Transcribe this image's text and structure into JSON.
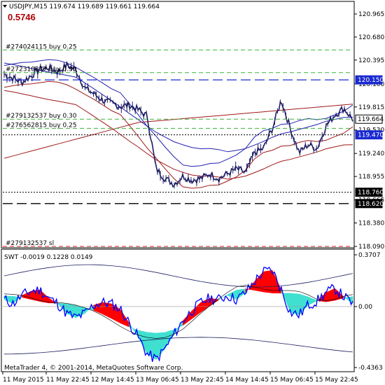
{
  "header": {
    "symbol_line": "USDJPY,M15  119.674 119.689 119.661 119.664",
    "profit": "0.5746"
  },
  "orders": [
    {
      "label": "#274024115 buy 0.25",
      "price": 120.52,
      "color": "#3cb43c"
    },
    {
      "label": "#272310877 buy 0.30",
      "price": 120.24,
      "color": "#3cb43c"
    },
    {
      "label": "#279132537 buy 0.30",
      "price": 119.664,
      "color": "#3cb43c"
    },
    {
      "label": "#276562815 buy 0.25",
      "price": 119.55,
      "color": "#3cb43c"
    },
    {
      "label": "#279132537 sl",
      "price": 118.09,
      "color": "#d02020"
    }
  ],
  "price_tags": [
    {
      "text": "120.150",
      "price": 120.15,
      "bg": "#1a2ad0",
      "fg": "#ffffff"
    },
    {
      "text": "119.664",
      "price": 119.664,
      "bg": "#ffffff",
      "fg": "#000000"
    },
    {
      "text": "119.470",
      "price": 119.47,
      "bg": "#1a2ad0",
      "fg": "#ffffff"
    },
    {
      "text": "118.760",
      "price": 118.76,
      "bg": "#000000",
      "fg": "#ffffff"
    },
    {
      "text": "118.620",
      "price": 118.62,
      "bg": "#000000",
      "fg": "#ffffff"
    }
  ],
  "price_axis": {
    "min": 118.09,
    "max": 120.965,
    "ticks": [
      "120.965",
      "120.680",
      "120.395",
      "120.100",
      "119.815",
      "119.530",
      "119.240",
      "118.955",
      "118.665",
      "118.380",
      "118.090"
    ]
  },
  "indicator": {
    "label": "SWT -0.0019 0.1228 0.0149",
    "ticks": [
      "0.3707",
      "0.00",
      "-0.4363"
    ],
    "min": -0.4363,
    "max": 0.3707
  },
  "time_axis": [
    "11 May 2015",
    "11 May 22:45",
    "12 May 14:45",
    "13 May 06:45",
    "13 May 22:45",
    "14 May 14:45",
    "15 May 06:45",
    "15 May 22:45"
  ],
  "footer": "MetaTrader 4, © 2001-2014, MetaQuotes Software Corp.",
  "colors": {
    "candles": "#1e1e64",
    "blue_band": "#2020b0",
    "red_band": "#a01818",
    "swt_red": "#ff0000",
    "swt_cyan": "#40e0d0",
    "swt_line": "#0000ff"
  },
  "chart_data": {
    "type": "line",
    "title": "USDJPY,M15",
    "series": [
      {
        "name": "close",
        "values": [
          120.22,
          120.17,
          120.12,
          120.2,
          120.28,
          120.3,
          120.25,
          120.33,
          120.28,
          120.05,
          119.98,
          119.9,
          119.86,
          119.82,
          119.84,
          119.78,
          119.7,
          119.05,
          118.93,
          118.86,
          118.96,
          118.91,
          118.93,
          118.99,
          118.93,
          118.99,
          119.05,
          119.0,
          119.25,
          119.3,
          119.55,
          119.9,
          119.55,
          119.25,
          119.35,
          119.3,
          119.58,
          119.72,
          119.8,
          119.66
        ]
      }
    ],
    "ylim": [
      118.09,
      120.965
    ],
    "indicator_series": [
      {
        "name": "SWT",
        "values": [
          0.05,
          0.02,
          0.08,
          0.11,
          0.12,
          0.06,
          0.02,
          -0.05,
          -0.08,
          -0.05,
          0.01,
          0.03,
          0.02,
          -0.02,
          -0.12,
          -0.22,
          -0.34,
          -0.38,
          -0.3,
          -0.2,
          -0.1,
          -0.03,
          0.03,
          0.06,
          0.05,
          0.08,
          0.05,
          0.1,
          0.18,
          0.25,
          0.26,
          0.12,
          -0.04,
          -0.06,
          0.01,
          0.04,
          0.1,
          0.13,
          0.07,
          0.02
        ]
      }
    ],
    "indicator_ylim": [
      -0.4363,
      0.3707
    ]
  }
}
